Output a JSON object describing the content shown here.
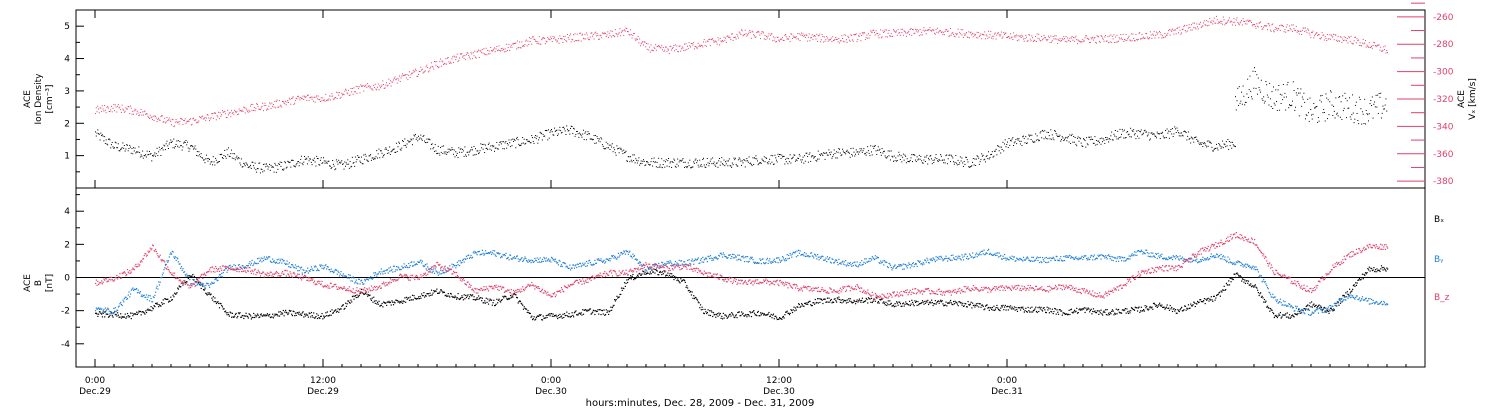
{
  "chart_data": [
    {
      "type": "scatter",
      "panel": "top",
      "ylabel_lines": [
        "ACE",
        "Ion Density",
        "[cm⁻³]"
      ],
      "y2label_lines": [
        "ACE",
        "Vₓ [km/s]"
      ],
      "ylim": [
        0,
        5.5
      ],
      "yticks": [
        1,
        2,
        3,
        4,
        5
      ],
      "y2lim": [
        -385,
        -255
      ],
      "y2ticks": [
        -260,
        -280,
        -300,
        -320,
        -340,
        -360,
        -380
      ],
      "xlim_hours": [
        -1,
        70
      ],
      "series": [
        {
          "axis": "left",
          "color": "#000000",
          "x_hours": [
            0,
            1,
            2,
            3,
            4,
            5,
            6,
            7,
            8,
            9,
            10,
            11,
            12,
            13,
            14,
            15,
            16,
            17,
            18,
            19,
            20,
            21,
            22,
            23,
            24,
            25,
            26,
            27,
            28,
            29,
            30,
            31,
            32,
            33,
            34,
            35,
            36,
            37,
            38,
            39,
            40,
            41,
            42,
            43,
            44,
            45,
            46,
            47,
            48,
            49,
            50,
            51,
            52,
            53,
            54,
            55,
            56,
            57,
            58,
            59,
            60
          ],
          "values": [
            1.7,
            1.3,
            1.2,
            1.0,
            1.4,
            1.3,
            0.8,
            1.1,
            0.7,
            0.6,
            0.7,
            0.9,
            0.8,
            0.7,
            0.9,
            1.1,
            1.3,
            1.6,
            1.2,
            1.1,
            1.2,
            1.3,
            1.4,
            1.5,
            1.7,
            1.8,
            1.6,
            1.3,
            1.0,
            0.8,
            0.8,
            0.8,
            0.8,
            0.8,
            0.8,
            0.9,
            0.9,
            0.9,
            1.0,
            1.1,
            1.1,
            1.2,
            1.0,
            0.9,
            0.9,
            0.9,
            0.8,
            1.0,
            1.4,
            1.5,
            1.7,
            1.6,
            1.4,
            1.5,
            1.7,
            1.7,
            1.6,
            1.8,
            1.4,
            1.3,
            1.4
          ]
        },
        {
          "axis": "left",
          "color": "#000000",
          "x_hours": [
            60,
            61,
            62,
            63,
            64,
            65,
            66,
            67,
            68
          ],
          "values": [
            2.6,
            3.3,
            2.8,
            2.9,
            2.3,
            2.6,
            2.5,
            2.4,
            2.6
          ]
        },
        {
          "axis": "right",
          "color": "#e0406a",
          "x_hours": [
            0,
            1,
            2,
            3,
            4,
            5,
            6,
            7,
            8,
            9,
            10,
            11,
            12,
            13,
            14,
            15,
            16,
            17,
            18,
            19,
            20,
            21,
            22,
            23,
            24,
            25,
            26,
            27,
            28,
            29,
            30,
            31,
            32,
            33,
            34,
            35,
            36,
            37,
            38,
            39,
            40,
            41,
            42,
            43,
            44,
            45,
            46,
            47,
            48,
            49,
            50,
            51,
            52,
            53,
            54,
            55,
            56,
            57,
            58,
            59,
            60,
            61,
            62,
            63,
            64,
            65,
            66,
            67,
            68
          ],
          "values": [
            -328,
            -326,
            -328,
            -332,
            -337,
            -336,
            -333,
            -330,
            -327,
            -325,
            -322,
            -319,
            -319,
            -316,
            -312,
            -310,
            -305,
            -300,
            -294,
            -290,
            -287,
            -284,
            -281,
            -277,
            -277,
            -275,
            -274,
            -273,
            -270,
            -282,
            -284,
            -282,
            -279,
            -277,
            -272,
            -273,
            -276,
            -274,
            -275,
            -276,
            -275,
            -272,
            -272,
            -271,
            -270,
            -271,
            -272,
            -273,
            -274,
            -275,
            -275,
            -277,
            -276,
            -276,
            -275,
            -274,
            -273,
            -270,
            -266,
            -262,
            -263,
            -265,
            -268,
            -268,
            -272,
            -275,
            -276,
            -280,
            -284
          ]
        }
      ]
    },
    {
      "type": "line",
      "panel": "bottom",
      "ylabel_lines": [
        "ACE",
        "B",
        "[nT]"
      ],
      "ylim": [
        -5.4,
        5.4
      ],
      "yticks": [
        4,
        2,
        0,
        -2,
        -4
      ],
      "xlim_hours": [
        -1,
        70
      ],
      "series": [
        {
          "name": "Bₓ",
          "color": "#000000",
          "x_hours": [
            0,
            1,
            2,
            3,
            4,
            5,
            6,
            7,
            8,
            9,
            10,
            11,
            12,
            13,
            14,
            15,
            16,
            17,
            18,
            19,
            20,
            21,
            22,
            23,
            24,
            25,
            26,
            27,
            28,
            29,
            30,
            31,
            32,
            33,
            34,
            35,
            36,
            37,
            38,
            39,
            40,
            41,
            42,
            43,
            44,
            45,
            46,
            47,
            48,
            49,
            50,
            51,
            52,
            53,
            54,
            55,
            56,
            57,
            58,
            59,
            60,
            61,
            62,
            63,
            64,
            65,
            66,
            67,
            68
          ],
          "values": [
            -2.2,
            -2.2,
            -2.3,
            -1.8,
            -1.2,
            0.2,
            -1.0,
            -2.2,
            -2.3,
            -2.3,
            -2.1,
            -2.2,
            -2.3,
            -1.8,
            -0.8,
            -1.6,
            -1.4,
            -1.1,
            -0.8,
            -1.1,
            -1.2,
            -1.5,
            -1.0,
            -2.4,
            -2.3,
            -2.2,
            -2.0,
            -2.1,
            -0.1,
            0.4,
            0.3,
            -0.3,
            -2.0,
            -2.3,
            -2.2,
            -2.1,
            -2.4,
            -1.7,
            -1.4,
            -1.3,
            -1.4,
            -1.3,
            -1.6,
            -1.5,
            -1.5,
            -1.5,
            -1.6,
            -1.8,
            -1.8,
            -1.9,
            -1.9,
            -2.1,
            -1.9,
            -2.1,
            -2.0,
            -1.9,
            -1.6,
            -2.0,
            -1.5,
            -1.2,
            0.2,
            -0.5,
            -2.2,
            -2.3,
            -1.6,
            -2.0,
            -0.8,
            0.5,
            0.6
          ]
        },
        {
          "name": "Bᵧ",
          "color": "#1f7fd6",
          "x_hours": [
            0,
            1,
            2,
            3,
            4,
            5,
            6,
            7,
            8,
            9,
            10,
            11,
            12,
            13,
            14,
            15,
            16,
            17,
            18,
            19,
            20,
            21,
            22,
            23,
            24,
            25,
            26,
            27,
            28,
            29,
            30,
            31,
            32,
            33,
            34,
            35,
            36,
            37,
            38,
            39,
            40,
            41,
            42,
            43,
            44,
            45,
            46,
            47,
            48,
            49,
            50,
            51,
            52,
            53,
            54,
            55,
            56,
            57,
            58,
            59,
            60,
            61,
            62,
            63,
            64,
            65,
            66,
            67,
            68
          ],
          "values": [
            -1.9,
            -2.0,
            -0.7,
            -1.3,
            1.6,
            -0.2,
            -0.5,
            0.6,
            0.8,
            1.2,
            0.9,
            0.4,
            0.7,
            0.2,
            -0.3,
            0.4,
            0.6,
            1.0,
            0.3,
            0.8,
            1.5,
            1.5,
            1.2,
            1.1,
            1.1,
            0.6,
            0.9,
            1.1,
            1.6,
            0.5,
            0.9,
            0.9,
            1.1,
            1.4,
            1.2,
            1.0,
            1.1,
            1.5,
            1.3,
            1.0,
            0.8,
            1.2,
            0.6,
            0.8,
            1.1,
            1.2,
            1.3,
            1.6,
            1.2,
            1.1,
            1.1,
            1.2,
            1.2,
            1.3,
            1.1,
            1.6,
            1.3,
            1.2,
            1.1,
            1.4,
            0.9,
            0.7,
            -1.2,
            -1.8,
            -2.1,
            -1.8,
            -1.0,
            -1.4,
            -1.5
          ]
        },
        {
          "name": "B_z",
          "color": "#e0406a",
          "x_hours": [
            0,
            1,
            2,
            3,
            4,
            5,
            6,
            7,
            8,
            9,
            10,
            11,
            12,
            13,
            14,
            15,
            16,
            17,
            18,
            19,
            20,
            21,
            22,
            23,
            24,
            25,
            26,
            27,
            28,
            29,
            30,
            31,
            32,
            33,
            34,
            35,
            36,
            37,
            38,
            39,
            40,
            41,
            42,
            43,
            44,
            45,
            46,
            47,
            48,
            49,
            50,
            51,
            52,
            53,
            54,
            55,
            56,
            57,
            58,
            59,
            60,
            61,
            62,
            63,
            64,
            65,
            66,
            67,
            68
          ],
          "values": [
            -0.3,
            0.0,
            0.5,
            1.9,
            0.3,
            -0.6,
            0.5,
            0.6,
            0.5,
            0.2,
            0.3,
            0.0,
            -0.4,
            -0.6,
            -0.8,
            -0.5,
            0.1,
            0.0,
            0.8,
            0.2,
            -0.8,
            -0.5,
            -0.9,
            -0.4,
            -1.1,
            -0.4,
            -0.1,
            0.3,
            0.3,
            0.8,
            0.6,
            0.7,
            0.3,
            0.0,
            -0.3,
            -0.2,
            -0.3,
            -0.6,
            -0.7,
            -0.8,
            -0.5,
            -1.1,
            -1.0,
            -0.8,
            -0.8,
            -0.9,
            -0.6,
            -0.7,
            -0.6,
            -0.6,
            -0.7,
            -0.5,
            -0.8,
            -1.1,
            -0.5,
            0.3,
            0.6,
            0.6,
            1.5,
            2.0,
            2.6,
            2.2,
            0.4,
            -0.2,
            -0.8,
            0.5,
            1.4,
            1.9,
            1.9
          ]
        }
      ]
    }
  ],
  "x_axis": {
    "ticks": [
      {
        "hour": 0,
        "time": "0:00",
        "date": "Dec.29"
      },
      {
        "hour": 12,
        "time": "12:00",
        "date": "Dec.29"
      },
      {
        "hour": 24,
        "time": "0:00",
        "date": "Dec.30"
      },
      {
        "hour": 36,
        "time": "12:00",
        "date": "Dec.30"
      },
      {
        "hour": 48,
        "time": "0:00",
        "date": "Dec.31"
      }
    ],
    "label": "hours:minutes, Dec. 28, 2009 - Dec. 31, 2009"
  },
  "colors": {
    "axis": "#000000",
    "black": "#000000",
    "blue": "#1f7fd6",
    "red": "#e0406a"
  }
}
